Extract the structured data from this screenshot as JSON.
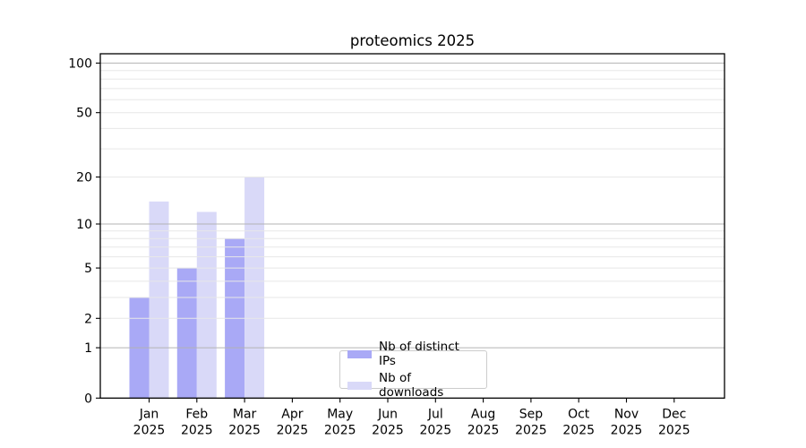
{
  "chart_data": {
    "type": "bar",
    "title": "proteomics 2025",
    "categories": [
      "Jan 2025",
      "Feb 2025",
      "Mar 2025",
      "Apr 2025",
      "May 2025",
      "Jun 2025",
      "Jul 2025",
      "Aug 2025",
      "Sep 2025",
      "Oct 2025",
      "Nov 2025",
      "Dec 2025"
    ],
    "x_tick_months": [
      "Jan",
      "Feb",
      "Mar",
      "Apr",
      "May",
      "Jun",
      "Jul",
      "Aug",
      "Sep",
      "Oct",
      "Nov",
      "Dec"
    ],
    "x_tick_year": "2025",
    "series": [
      {
        "name": "Nb of distinct IPs",
        "color": "#a9a9f6",
        "values": [
          3,
          5,
          8,
          0,
          0,
          0,
          0,
          0,
          0,
          0,
          0,
          0
        ]
      },
      {
        "name": "Nb of downloads",
        "color": "#d9d9f8",
        "values": [
          14,
          12,
          20,
          0,
          0,
          0,
          0,
          0,
          0,
          0,
          0,
          0
        ]
      }
    ],
    "y_axis": {
      "scale": "log10(1+x)",
      "tick_labels": [
        0,
        1,
        2,
        5,
        10,
        20,
        50,
        100
      ],
      "major_gridlines": [
        1,
        10,
        100
      ],
      "minor_gridlines": [
        2,
        3,
        4,
        5,
        6,
        7,
        8,
        9,
        20,
        30,
        40,
        50,
        60,
        70,
        80,
        90
      ],
      "ylim": [
        0,
        114
      ]
    },
    "grid": "on",
    "legend": {
      "position": "lower center inside axes",
      "entries": [
        "Nb of distinct IPs",
        "Nb of downloads"
      ]
    },
    "colors": {
      "bar_distinct_ips": "#a9a9f6",
      "bar_downloads": "#d9d9f8",
      "major_grid": "#b3b3b3",
      "minor_grid": "#e7e7e7",
      "axis": "#000000",
      "text": "#000000",
      "background": "#ffffff",
      "legend_border": "#cccccc"
    }
  }
}
